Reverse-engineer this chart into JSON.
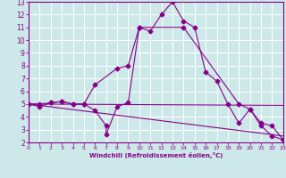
{
  "xlabel": "Windchill (Refroidissement éolien,°C)",
  "xlim": [
    0,
    23
  ],
  "ylim": [
    2,
    13
  ],
  "xticks": [
    0,
    1,
    2,
    3,
    4,
    5,
    6,
    7,
    8,
    9,
    10,
    11,
    12,
    13,
    14,
    15,
    16,
    17,
    18,
    19,
    20,
    21,
    22,
    23
  ],
  "yticks": [
    2,
    3,
    4,
    5,
    6,
    7,
    8,
    9,
    10,
    11,
    12,
    13
  ],
  "bg_color": "#cce8e8",
  "line_color": "#880088",
  "grid_color": "#ffffff",
  "line1_x": [
    0,
    1,
    2,
    3,
    4,
    5,
    6,
    7,
    7,
    8,
    9,
    10,
    11,
    12,
    13,
    14,
    15,
    16,
    17,
    18,
    19,
    20,
    21,
    22,
    23
  ],
  "line1_y": [
    5.0,
    4.8,
    5.1,
    5.2,
    5.0,
    5.0,
    4.5,
    3.3,
    2.6,
    4.8,
    5.1,
    11.0,
    10.7,
    12.0,
    13.0,
    11.5,
    11.0,
    7.5,
    6.8,
    5.0,
    3.5,
    4.6,
    3.3,
    2.5,
    2.2
  ],
  "line2_x": [
    0,
    23
  ],
  "line2_y": [
    5.0,
    4.9
  ],
  "line3_x": [
    0,
    23
  ],
  "line3_y": [
    5.0,
    2.5
  ],
  "line4_x": [
    0,
    1,
    2,
    3,
    4,
    5,
    6,
    8,
    9,
    10,
    14,
    19,
    20,
    21,
    22,
    23
  ],
  "line4_y": [
    5.0,
    5.0,
    5.1,
    5.2,
    5.0,
    5.0,
    6.5,
    7.8,
    8.0,
    11.0,
    11.0,
    5.0,
    4.6,
    3.5,
    3.3,
    2.2
  ]
}
